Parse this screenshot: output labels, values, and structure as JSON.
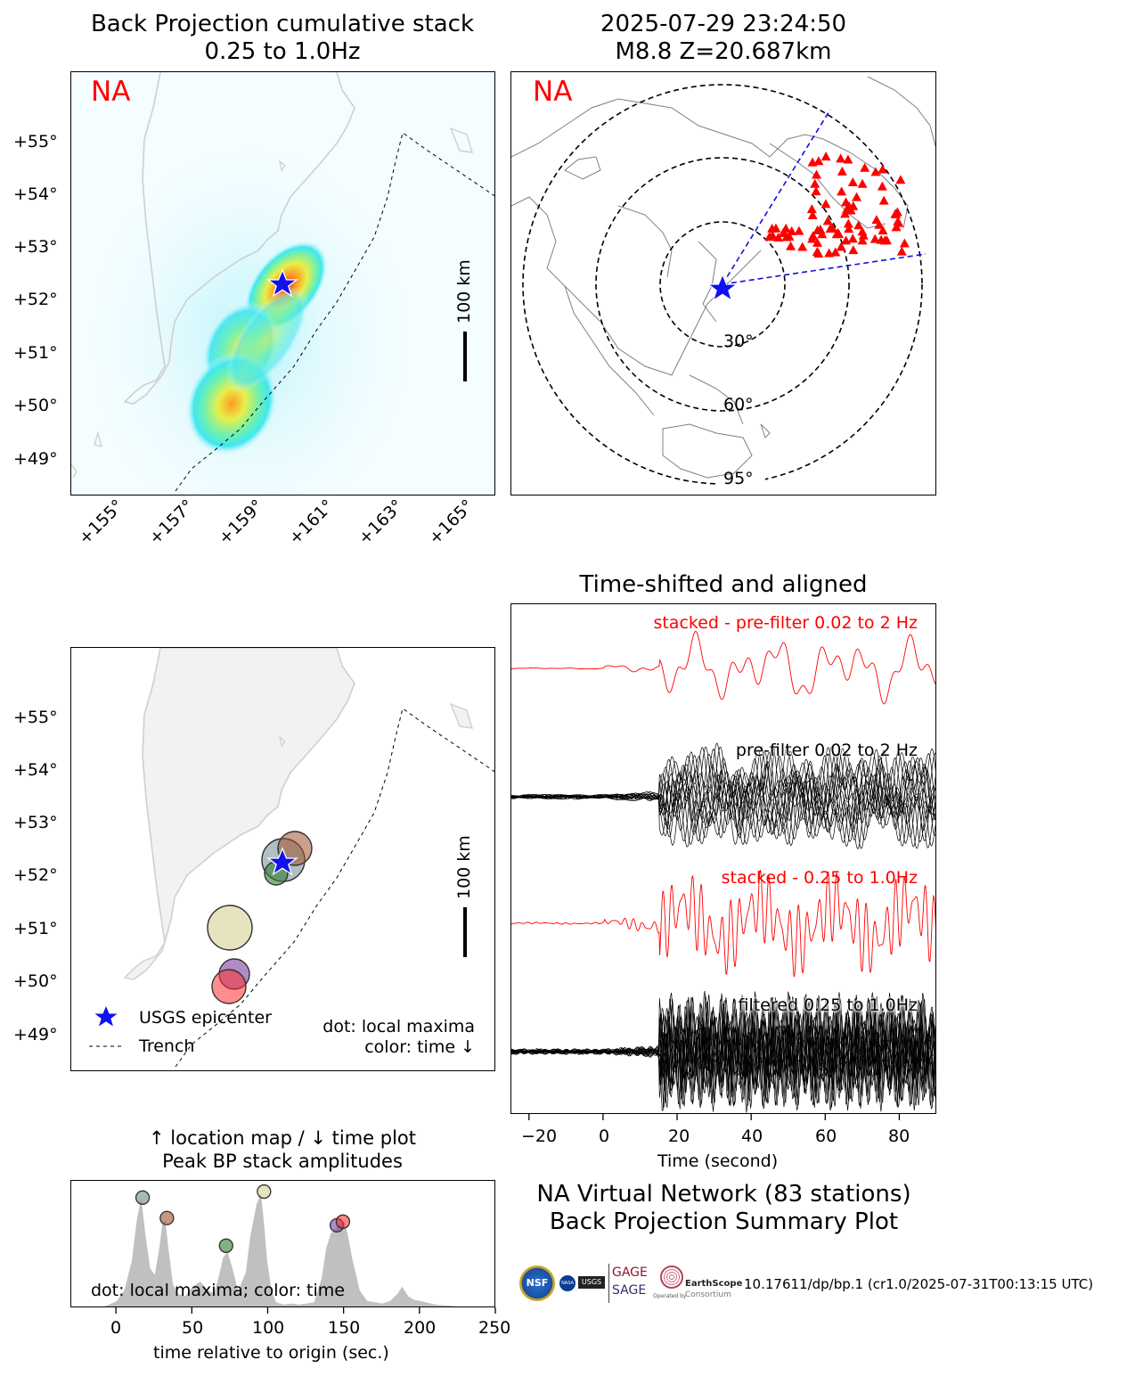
{
  "bp_map": {
    "title_line1": "Back Projection cumulative stack",
    "title_line2": "0.25 to 1.0Hz",
    "network_tag": "NA",
    "scale_label": "100 km",
    "lat_ticks": [
      "+55°",
      "+54°",
      "+53°",
      "+52°",
      "+51°",
      "+50°",
      "+49°"
    ],
    "lon_ticks": [
      "+155°",
      "+157°",
      "+159°",
      "+161°",
      "+163°",
      "+165°"
    ]
  },
  "projection_map": {
    "title_line1": "2025-07-29 23:24:50",
    "title_line2": "M8.8 Z=20.687km",
    "network_tag": "NA",
    "ring_labels": [
      "30°",
      "60°",
      "95°"
    ]
  },
  "local_maxima_map": {
    "scale_label": "100 km",
    "lat_ticks": [
      "+55°",
      "+54°",
      "+53°",
      "+52°",
      "+51°",
      "+50°",
      "+49°"
    ],
    "legend": {
      "epicenter": "USGS epicenter",
      "trench": "Trench"
    },
    "note_line1": "dot: local maxima",
    "note_line2": "color: time ↓"
  },
  "waveforms": {
    "title": "Time-shifted and aligned",
    "labels": {
      "stacked_prefilter": "stacked - pre-filter 0.02 to 2 Hz",
      "prefilter": "pre-filter 0.02 to 2 Hz",
      "stacked_filtered": "stacked - 0.25 to 1.0Hz",
      "filtered": "filtered 0.25 to 1.0Hz"
    },
    "xlabel": "Time (second)",
    "x_ticks": [
      "−20",
      "0",
      "20",
      "40",
      "60",
      "80"
    ],
    "xlim": [
      -25,
      90
    ]
  },
  "summary": {
    "line1": "NA Virtual Network (83 stations)",
    "line2": "Back Projection Summary Plot",
    "doi": "10.17611/dp/bp.1 (cr1.0/2025-07-31T00:13:15 UTC)",
    "logos": {
      "gage": "GAGE",
      "sage": "SAGE",
      "earthscope": "EarthScope",
      "consortium": "Consortium",
      "usgs": "USGS",
      "nasa": "NASA",
      "nsf": "NSF",
      "operated": "Operated by"
    }
  },
  "chart_data": {
    "type": "area",
    "title_line1": "↑ location map / ↓ time plot",
    "title_line2": "Peak BP stack amplitudes",
    "xlabel": "time relative to origin (sec.)",
    "x_ticks": [
      "0",
      "50",
      "100",
      "150",
      "200",
      "250"
    ],
    "xlim": [
      -30,
      250
    ],
    "ylim": [
      0,
      1.0
    ],
    "annotation": "dot: local maxima; color: time",
    "x": [
      -30,
      -20,
      -10,
      -5,
      0,
      5,
      10,
      13,
      16,
      19,
      22,
      25,
      28,
      30,
      32,
      34,
      37,
      40,
      45,
      50,
      55,
      60,
      64,
      67,
      70,
      73,
      76,
      80,
      85,
      88,
      92,
      95,
      97,
      99,
      102,
      105,
      110,
      115,
      120,
      125,
      130,
      135,
      138,
      141,
      144,
      147,
      150,
      152,
      155,
      160,
      165,
      170,
      175,
      180,
      185,
      188,
      192,
      196,
      200,
      210,
      220,
      230,
      240,
      250
    ],
    "values": [
      0,
      0,
      0.01,
      0.03,
      0.06,
      0.15,
      0.4,
      0.72,
      0.92,
      0.6,
      0.33,
      0.28,
      0.5,
      0.7,
      0.73,
      0.5,
      0.2,
      0.12,
      0.1,
      0.18,
      0.22,
      0.15,
      0.12,
      0.25,
      0.42,
      0.47,
      0.34,
      0.14,
      0.3,
      0.6,
      0.86,
      0.96,
      0.7,
      0.4,
      0.14,
      0.05,
      0.03,
      0.04,
      0.03,
      0.04,
      0.05,
      0.25,
      0.5,
      0.62,
      0.66,
      0.7,
      0.72,
      0.62,
      0.42,
      0.15,
      0.06,
      0.05,
      0.04,
      0.06,
      0.12,
      0.18,
      0.1,
      0.07,
      0.06,
      0.03,
      0.02,
      0.01,
      0,
      0
    ],
    "maxima": [
      {
        "t": 17,
        "amp": 0.92,
        "color": "#6f8a8a"
      },
      {
        "t": 33,
        "amp": 0.75,
        "color": "#a0522d"
      },
      {
        "t": 72,
        "amp": 0.52,
        "color": "#2e7d32"
      },
      {
        "t": 97,
        "amp": 0.97,
        "color": "#d8d095"
      },
      {
        "t": 145,
        "amp": 0.69,
        "color": "#7b3fa0"
      },
      {
        "t": 149,
        "amp": 0.72,
        "color": "#ff3030"
      }
    ],
    "fill_color": "#c0c0c0"
  }
}
